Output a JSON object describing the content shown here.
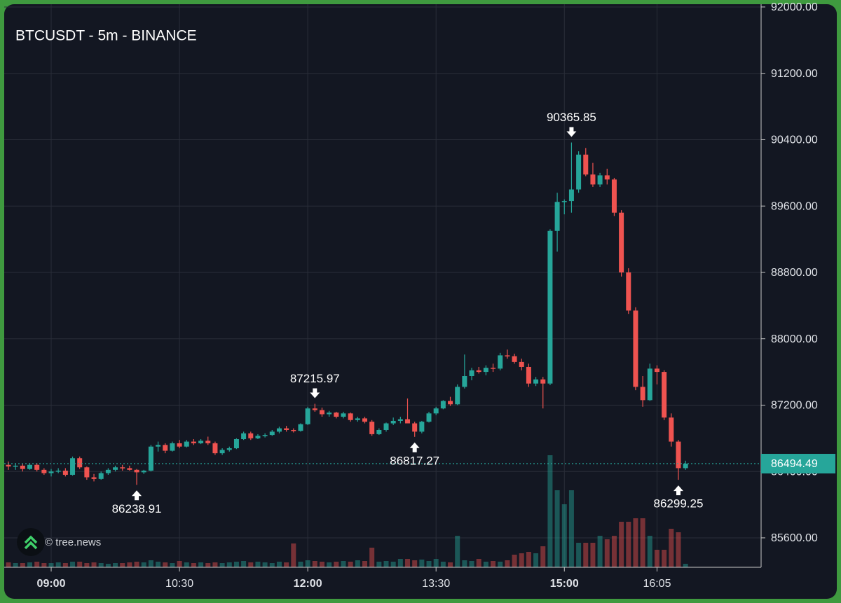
{
  "chart_data": {
    "type": "candlestick",
    "title": "BTCUSDT - 5m - BINANCE",
    "watermark": "© tree.news",
    "up_color": "#26a69a",
    "down_color": "#ef5350",
    "grid": true,
    "ylim": [
      85245,
      92084
    ],
    "yticks": [
      {
        "value": 85600,
        "label": "85600.00"
      },
      {
        "value": 86400,
        "label": "86400.00"
      },
      {
        "value": 87200,
        "label": "87200.00"
      },
      {
        "value": 88000,
        "label": "88000.00"
      },
      {
        "value": 88800,
        "label": "88800.00"
      },
      {
        "value": 89600,
        "label": "89600.00"
      },
      {
        "value": 90400,
        "label": "90400.00"
      },
      {
        "value": 91200,
        "label": "91200.00"
      },
      {
        "value": 92000,
        "label": "92000.00"
      }
    ],
    "last_price": 86494.49,
    "categories": [
      null,
      null,
      null,
      null,
      null,
      null,
      "09:00",
      null,
      null,
      null,
      null,
      null,
      null,
      null,
      null,
      null,
      null,
      null,
      null,
      null,
      null,
      null,
      null,
      null,
      "10:30",
      null,
      null,
      null,
      null,
      null,
      null,
      null,
      null,
      null,
      null,
      null,
      null,
      null,
      null,
      null,
      null,
      null,
      "12:00",
      null,
      null,
      null,
      null,
      null,
      null,
      null,
      null,
      null,
      null,
      null,
      null,
      null,
      null,
      null,
      null,
      null,
      "13:30",
      null,
      null,
      null,
      null,
      null,
      null,
      null,
      null,
      null,
      null,
      null,
      null,
      null,
      null,
      null,
      null,
      null,
      "15:00",
      null,
      null,
      null,
      null,
      null,
      null,
      null,
      null,
      null,
      null,
      null,
      null,
      "16:05",
      null,
      null,
      null,
      null
    ],
    "ohlc": [
      [
        86480,
        86520,
        86420,
        86460
      ],
      [
        86460,
        86500,
        86420,
        86470
      ],
      [
        86470,
        86490,
        86400,
        86430
      ],
      [
        86430,
        86500,
        86420,
        86480
      ],
      [
        86480,
        86500,
        86400,
        86420
      ],
      [
        86420,
        86440,
        86360,
        86380
      ],
      [
        86380,
        86430,
        86340,
        86400
      ],
      [
        86400,
        86440,
        86380,
        86410
      ],
      [
        86410,
        86440,
        86340,
        86360
      ],
      [
        86360,
        86580,
        86350,
        86560
      ],
      [
        86560,
        86580,
        86430,
        86450
      ],
      [
        86450,
        86460,
        86300,
        86330
      ],
      [
        86330,
        86370,
        86280,
        86310
      ],
      [
        86310,
        86400,
        86300,
        86380
      ],
      [
        86380,
        86440,
        86360,
        86420
      ],
      [
        86420,
        86470,
        86400,
        86450
      ],
      [
        86450,
        86480,
        86410,
        86440
      ],
      [
        86440,
        86470,
        86410,
        86420
      ],
      [
        86420,
        86430,
        86238.91,
        86390
      ],
      [
        86390,
        86420,
        86370,
        86410
      ],
      [
        86410,
        86720,
        86400,
        86700
      ],
      [
        86700,
        86760,
        86640,
        86720
      ],
      [
        86720,
        86740,
        86620,
        86650
      ],
      [
        86650,
        86760,
        86640,
        86740
      ],
      [
        86740,
        86780,
        86680,
        86700
      ],
      [
        86700,
        86780,
        86690,
        86760
      ],
      [
        86760,
        86790,
        86720,
        86740
      ],
      [
        86740,
        86790,
        86730,
        86770
      ],
      [
        86770,
        86820,
        86720,
        86740
      ],
      [
        86740,
        86760,
        86600,
        86620
      ],
      [
        86620,
        86680,
        86600,
        86660
      ],
      [
        86660,
        86700,
        86640,
        86680
      ],
      [
        86680,
        86800,
        86670,
        86790
      ],
      [
        86790,
        86880,
        86780,
        86860
      ],
      [
        86860,
        86880,
        86780,
        86800
      ],
      [
        86800,
        86850,
        86790,
        86830
      ],
      [
        86830,
        86860,
        86810,
        86840
      ],
      [
        86840,
        86900,
        86830,
        86880
      ],
      [
        86880,
        86940,
        86860,
        86920
      ],
      [
        86920,
        86950,
        86880,
        86900
      ],
      [
        86900,
        86920,
        86870,
        86890
      ],
      [
        86890,
        86980,
        86880,
        86970
      ],
      [
        86970,
        87180,
        86960,
        87160
      ],
      [
        87160,
        87215.97,
        87120,
        87140
      ],
      [
        87140,
        87170,
        87060,
        87090
      ],
      [
        87090,
        87130,
        87060,
        87110
      ],
      [
        87110,
        87120,
        87040,
        87060
      ],
      [
        87060,
        87120,
        87040,
        87100
      ],
      [
        87100,
        87110,
        87000,
        87020
      ],
      [
        87020,
        87060,
        87000,
        87040
      ],
      [
        87040,
        87060,
        86980,
        87000
      ],
      [
        87000,
        87020,
        86830,
        86850
      ],
      [
        86850,
        86920,
        86840,
        86900
      ],
      [
        86900,
        86990,
        86880,
        86980
      ],
      [
        86980,
        87050,
        86960,
        87010
      ],
      [
        87010,
        87060,
        86980,
        87030
      ],
      [
        87030,
        87280,
        87000,
        86980
      ],
      [
        86980,
        87000,
        86817.27,
        86880
      ],
      [
        86880,
        87010,
        86860,
        87000
      ],
      [
        87000,
        87120,
        86990,
        87100
      ],
      [
        87100,
        87180,
        87080,
        87160
      ],
      [
        87160,
        87260,
        87150,
        87250
      ],
      [
        87250,
        87300,
        87190,
        87210
      ],
      [
        87210,
        87450,
        87200,
        87420
      ],
      [
        87420,
        87810,
        87400,
        87550
      ],
      [
        87550,
        87650,
        87500,
        87620
      ],
      [
        87620,
        87660,
        87580,
        87600
      ],
      [
        87600,
        87680,
        87560,
        87650
      ],
      [
        87650,
        87700,
        87600,
        87640
      ],
      [
        87640,
        87830,
        87620,
        87800
      ],
      [
        87800,
        87870,
        87760,
        87790
      ],
      [
        87790,
        87820,
        87700,
        87720
      ],
      [
        87720,
        87760,
        87620,
        87660
      ],
      [
        87660,
        87700,
        87420,
        87460
      ],
      [
        87460,
        87540,
        87430,
        87510
      ],
      [
        87510,
        87540,
        87160,
        87460
      ],
      [
        87460,
        89320,
        87440,
        89300
      ],
      [
        89300,
        89760,
        89050,
        89650
      ],
      [
        89650,
        89680,
        89500,
        89660
      ],
      [
        89660,
        90365.85,
        89520,
        89800
      ],
      [
        89800,
        90260,
        89760,
        90220
      ],
      [
        90220,
        90300,
        89960,
        89980
      ],
      [
        89980,
        90120,
        89830,
        89860
      ],
      [
        89860,
        90000,
        89830,
        89970
      ],
      [
        89970,
        90050,
        89860,
        89920
      ],
      [
        89920,
        89940,
        89480,
        89520
      ],
      [
        89520,
        89550,
        88750,
        88800
      ],
      [
        88800,
        88850,
        88300,
        88340
      ],
      [
        88340,
        88380,
        87380,
        87420
      ],
      [
        87420,
        87550,
        87180,
        87260
      ],
      [
        87260,
        87700,
        87250,
        87640
      ],
      [
        87640,
        87680,
        87450,
        87600
      ],
      [
        87600,
        87620,
        87020,
        87050
      ],
      [
        87050,
        87100,
        86700,
        86760
      ],
      [
        86760,
        86780,
        86299.25,
        86440
      ],
      [
        86440,
        86530,
        86420,
        86494.49
      ]
    ],
    "volume": [
      7,
      6,
      6,
      7,
      8,
      6,
      6,
      7,
      6,
      8,
      8,
      6,
      7,
      6,
      5,
      6,
      6,
      7,
      8,
      7,
      10,
      8,
      7,
      6,
      9,
      7,
      6,
      7,
      6,
      7,
      6,
      7,
      8,
      9,
      7,
      8,
      7,
      6,
      8,
      7,
      34,
      8,
      10,
      9,
      8,
      7,
      8,
      9,
      8,
      10,
      9,
      28,
      8,
      9,
      8,
      12,
      12,
      10,
      11,
      9,
      12,
      8,
      7,
      45,
      10,
      9,
      12,
      8,
      9,
      8,
      10,
      18,
      20,
      22,
      20,
      30,
      160,
      110,
      90,
      110,
      35,
      35,
      35,
      45,
      40,
      45,
      65,
      65,
      70,
      70,
      45,
      25,
      25,
      55,
      50,
      5
    ],
    "annotations": [
      86238.91,
      87215.97,
      86817.27,
      90365.85,
      86299.25
    ]
  }
}
